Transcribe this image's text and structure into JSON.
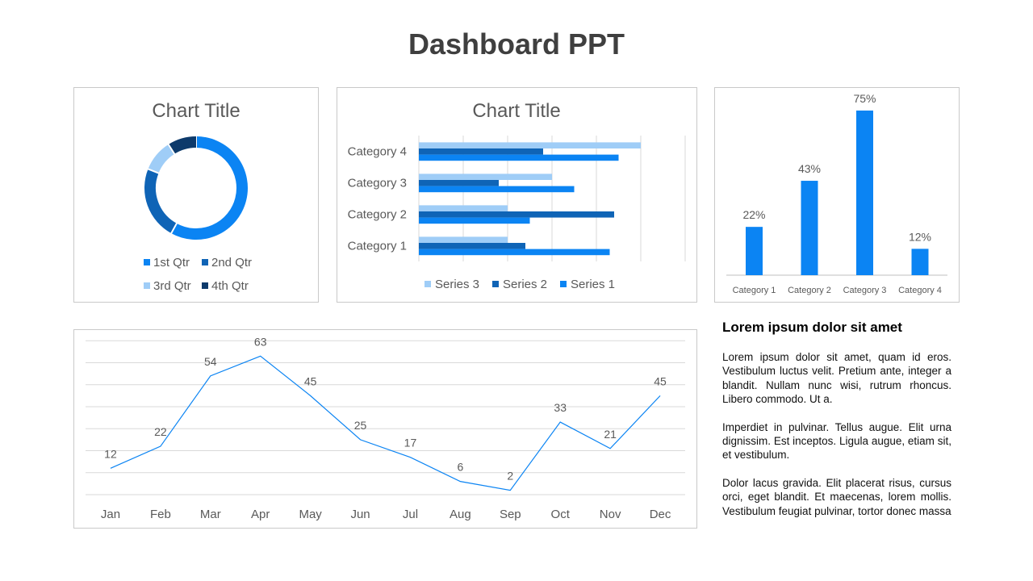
{
  "page": {
    "title": "Dashboard PPT"
  },
  "colors": {
    "blue": "#0b84f3",
    "dark_blue": "#0f64b6",
    "light_blue": "#9fcdf7",
    "navy": "#0d3a6b",
    "grid": "#d9d9d9",
    "axis": "#bfbfbf",
    "text": "#595959"
  },
  "chart_data": [
    {
      "type": "pie",
      "donut": true,
      "title": "Chart Title",
      "categories": [
        "1st Qtr",
        "2nd Qtr",
        "3rd Qtr",
        "4th Qtr"
      ],
      "values": [
        58,
        23,
        10,
        9
      ],
      "colors": [
        "#0b84f3",
        "#0f64b6",
        "#9fcdf7",
        "#0d3a6b"
      ],
      "legend": "bottom"
    },
    {
      "type": "bar",
      "orientation": "horizontal",
      "title": "Chart Title",
      "categories": [
        "Category 1",
        "Category 2",
        "Category 3",
        "Category 4"
      ],
      "series": [
        {
          "name": "Series 1",
          "values": [
            4.3,
            2.5,
            3.5,
            4.5
          ],
          "color": "#0b84f3"
        },
        {
          "name": "Series 2",
          "values": [
            2.4,
            4.4,
            1.8,
            2.8
          ],
          "color": "#0f64b6"
        },
        {
          "name": "Series 3",
          "values": [
            2,
            2,
            3,
            5
          ],
          "color": "#9fcdf7"
        }
      ],
      "xlim": [
        0,
        6
      ],
      "legend_order": [
        "Series 3",
        "Series 2",
        "Series 1"
      ],
      "legend": "bottom"
    },
    {
      "type": "bar",
      "title": "",
      "categories": [
        "Category 1",
        "Category 2",
        "Category 3",
        "Category 4"
      ],
      "values": [
        22,
        43,
        75,
        12
      ],
      "labels": [
        "22%",
        "43%",
        "75%",
        "12%"
      ],
      "ylim": [
        0,
        75
      ]
    },
    {
      "type": "line",
      "title": "",
      "categories": [
        "Jan",
        "Feb",
        "Mar",
        "Apr",
        "May",
        "Jun",
        "Jul",
        "Aug",
        "Sep",
        "Oct",
        "Nov",
        "Dec"
      ],
      "values": [
        12,
        22,
        54,
        63,
        45,
        25,
        17,
        6,
        2,
        33,
        21,
        45
      ],
      "ylim": [
        0,
        70
      ],
      "grid": true
    }
  ],
  "side": {
    "heading": "Lorem ipsum dolor sit amet",
    "paragraphs": [
      "Lorem ipsum dolor sit amet, quam id eros. Vestibulum luctus velit. Pretium ante, integer a blandit. Nullam nunc wisi, rutrum rhoncus. Libero commodo. Ut a.",
      "Imperdiet in pulvinar. Tellus augue. Elit urna dignissim. Est inceptos. Ligula augue, etiam sit, et vestibulum.",
      "Dolor lacus gravida. Elit placerat risus, cursus orci, eget blandit. Et maecenas, lorem mollis. Vestibulum feugiat pulvinar, tortor donec massa"
    ]
  }
}
